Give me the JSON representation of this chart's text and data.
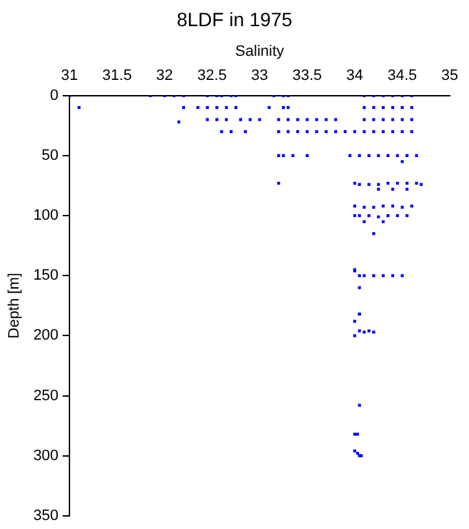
{
  "chart_data": {
    "type": "scatter",
    "title": "8LDF in 1975",
    "xlabel": "Salinity",
    "ylabel": "Depth [m]",
    "xlim": [
      31,
      35
    ],
    "xticks": [
      31,
      31.5,
      32,
      32.5,
      33,
      33.5,
      34,
      34.5,
      35
    ],
    "ylim": [
      350,
      0
    ],
    "yticks": [
      0,
      50,
      100,
      150,
      200,
      250,
      300,
      350
    ],
    "grid": false,
    "marker": "square",
    "color": "#0000ff",
    "x": [
      31.0,
      31.85,
      32.0,
      32.1,
      32.2,
      32.45,
      32.55,
      32.6,
      32.7,
      32.75,
      33.15,
      33.25,
      33.3,
      34.1,
      34.2,
      34.3,
      34.4,
      34.5,
      34.6,
      31.1,
      32.2,
      32.35,
      32.45,
      32.55,
      32.65,
      32.75,
      33.1,
      33.25,
      33.3,
      34.1,
      34.2,
      34.3,
      34.4,
      34.5,
      34.6,
      32.15,
      32.45,
      32.55,
      32.65,
      32.8,
      32.9,
      33.0,
      33.2,
      33.3,
      33.4,
      33.5,
      33.6,
      33.7,
      33.8,
      34.1,
      34.2,
      34.3,
      34.4,
      34.5,
      34.6,
      32.6,
      32.7,
      32.85,
      33.2,
      33.3,
      33.4,
      33.5,
      33.6,
      33.7,
      33.8,
      33.9,
      34.0,
      34.1,
      34.2,
      34.3,
      34.4,
      34.5,
      34.6,
      33.2,
      33.25,
      33.35,
      33.5,
      33.95,
      34.05,
      34.15,
      34.25,
      34.35,
      34.45,
      34.55,
      34.65,
      34.5,
      33.2,
      34.0,
      34.05,
      34.15,
      34.25,
      34.35,
      34.45,
      34.55,
      34.65,
      34.7,
      34.25,
      34.4,
      34.55,
      34.0,
      34.1,
      34.2,
      34.3,
      34.4,
      34.5,
      34.6,
      34.0,
      34.05,
      34.15,
      34.25,
      34.35,
      34.45,
      34.55,
      34.1,
      34.3,
      34.2,
      34.0,
      34.05,
      34.1,
      34.2,
      34.3,
      34.4,
      34.5,
      34.05,
      34.0,
      34.05,
      34.05,
      34.0,
      34.0,
      34.05,
      34.1,
      34.15,
      34.2,
      34.05,
      34.0,
      34.03,
      34.0,
      34.05,
      34.07,
      34.03
    ],
    "values": [
      0,
      0,
      0,
      0,
      0,
      0,
      0,
      0,
      0,
      0,
      0,
      0,
      0,
      0,
      0,
      0,
      0,
      0,
      0,
      10,
      10,
      10,
      10,
      10,
      10,
      10,
      10,
      10,
      10,
      10,
      10,
      10,
      10,
      10,
      10,
      22,
      20,
      20,
      20,
      20,
      20,
      20,
      20,
      20,
      20,
      20,
      20,
      20,
      20,
      20,
      20,
      20,
      20,
      20,
      20,
      30,
      30,
      30,
      30,
      30,
      30,
      30,
      30,
      30,
      30,
      30,
      30,
      30,
      30,
      30,
      30,
      30,
      30,
      50,
      50,
      50,
      50,
      50,
      50,
      50,
      50,
      50,
      50,
      50,
      50,
      55,
      73,
      73,
      74,
      74,
      74,
      73,
      73,
      73,
      73,
      74,
      78,
      78,
      78,
      92,
      93,
      93,
      92,
      92,
      93,
      92,
      100,
      100,
      100,
      101,
      100,
      100,
      100,
      105,
      105,
      115,
      146,
      150,
      150,
      150,
      150,
      150,
      150,
      160,
      145,
      182,
      182,
      188,
      200,
      196,
      197,
      196,
      197,
      258,
      282,
      282,
      296,
      300,
      300,
      298
    ]
  }
}
